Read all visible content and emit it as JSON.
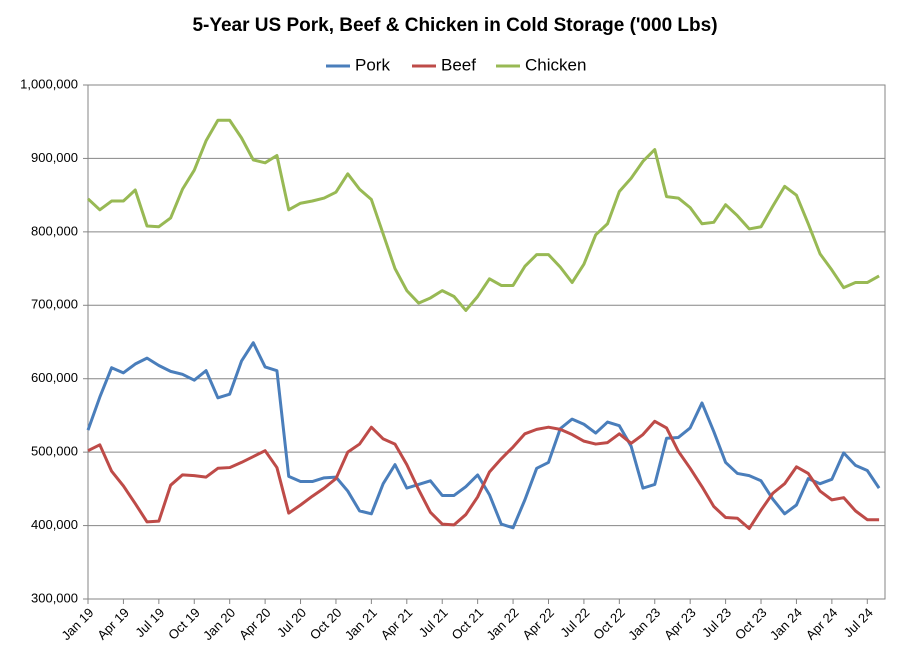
{
  "chart_data": {
    "type": "line",
    "title": "5-Year US Pork, Beef & Chicken in Cold Storage ('000 Lbs)",
    "categories": [
      "Jan 19",
      null,
      null,
      "Apr 19",
      null,
      null,
      "Jul 19",
      null,
      null,
      "Oct 19",
      null,
      null,
      "Jan 20",
      null,
      null,
      "Apr 20",
      null,
      null,
      "Jul 20",
      null,
      null,
      "Oct 20",
      null,
      null,
      "Jan 21",
      null,
      null,
      "Apr 21",
      null,
      null,
      "Jul 21",
      null,
      null,
      "Oct 21",
      null,
      null,
      "Jan 22",
      null,
      null,
      "Apr 22",
      null,
      null,
      "Jul 22",
      null,
      null,
      "Oct 22",
      null,
      null,
      "Jan 23",
      null,
      null,
      "Apr 23",
      null,
      null,
      "Jul 23",
      null,
      null,
      "Oct 23",
      null,
      null,
      "Jan 24",
      null,
      null,
      "Apr 24",
      null,
      null,
      "Jul 24",
      null
    ],
    "series": [
      {
        "name": "Pork",
        "color": "#4a7ebb",
        "values": [
          530000,
          575000,
          615000,
          608000,
          620000,
          628000,
          618000,
          610000,
          606000,
          598000,
          611000,
          574000,
          579000,
          624000,
          649000,
          616000,
          611000,
          467000,
          460000,
          460000,
          465000,
          466000,
          447000,
          420000,
          416000,
          457000,
          483000,
          451000,
          456000,
          461000,
          441000,
          441000,
          453000,
          469000,
          442000,
          402000,
          397000,
          435000,
          478000,
          486000,
          532000,
          545000,
          538000,
          526000,
          541000,
          536000,
          508000,
          451000,
          456000,
          519000,
          520000,
          533000,
          567000,
          528000,
          486000,
          471000,
          468000,
          461000,
          436000,
          416000,
          428000,
          464000,
          457000,
          463000,
          499000,
          482000,
          475000,
          451000
        ]
      },
      {
        "name": "Beef",
        "color": "#be4b48",
        "values": [
          502000,
          510000,
          474000,
          454000,
          430000,
          405000,
          406000,
          455000,
          469000,
          468000,
          466000,
          478000,
          479000,
          486000,
          494000,
          502000,
          479000,
          417000,
          428000,
          440000,
          451000,
          464000,
          500000,
          511000,
          534000,
          518000,
          511000,
          483000,
          449000,
          418000,
          402000,
          401000,
          415000,
          439000,
          473000,
          491000,
          507000,
          525000,
          531000,
          534000,
          531000,
          524000,
          515000,
          511000,
          513000,
          525000,
          512000,
          524000,
          542000,
          533000,
          501000,
          478000,
          453000,
          426000,
          411000,
          410000,
          396000,
          421000,
          444000,
          457000,
          480000,
          471000,
          447000,
          435000,
          438000,
          420000,
          408000,
          408000
        ]
      },
      {
        "name": "Chicken",
        "color": "#98b954",
        "values": [
          845000,
          830000,
          842000,
          842000,
          857000,
          808000,
          807000,
          819000,
          858000,
          884000,
          924000,
          952000,
          952000,
          928000,
          898000,
          894000,
          904000,
          830000,
          839000,
          842000,
          846000,
          854000,
          879000,
          858000,
          844000,
          797000,
          750000,
          720000,
          703000,
          710000,
          720000,
          712000,
          693000,
          712000,
          736000,
          727000,
          727000,
          753000,
          769000,
          769000,
          752000,
          731000,
          756000,
          796000,
          811000,
          855000,
          873000,
          896000,
          912000,
          848000,
          846000,
          833000,
          811000,
          813000,
          837000,
          822000,
          804000,
          807000,
          835000,
          862000,
          850000,
          811000,
          770000,
          748000,
          724000,
          731000,
          731000,
          740000
        ]
      }
    ],
    "ylim": [
      300000,
      1000000
    ],
    "yticks": [
      {
        "value": 300000,
        "label": "300,000"
      },
      {
        "value": 400000,
        "label": "400,000"
      },
      {
        "value": 500000,
        "label": "500,000"
      },
      {
        "value": 600000,
        "label": "600,000"
      },
      {
        "value": 700000,
        "label": "700,000"
      },
      {
        "value": 800000,
        "label": "800,000"
      },
      {
        "value": 900000,
        "label": "900,000"
      },
      {
        "value": 1000000,
        "label": "1,000,000"
      }
    ],
    "grid": true,
    "legend": "top"
  }
}
